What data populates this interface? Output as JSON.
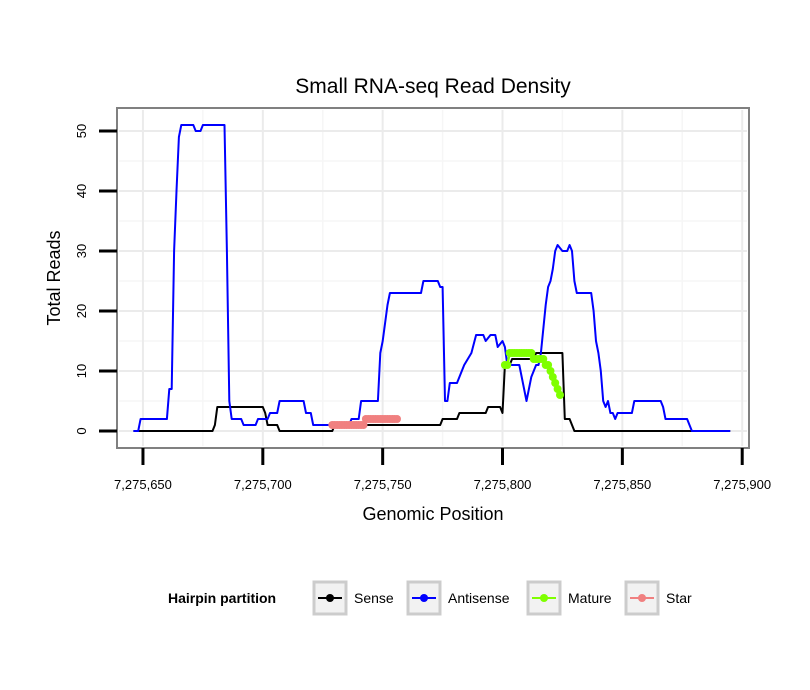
{
  "chart_data": {
    "type": "line",
    "title": "Small RNA-seq Read Density",
    "xlabel": "Genomic Position",
    "ylabel": "Total Reads",
    "xlim": [
      7275640,
      7275902
    ],
    "ylim": [
      -2.5,
      53.5
    ],
    "x_ticks": [
      7275650,
      7275700,
      7275750,
      7275800,
      7275850,
      7275900
    ],
    "x_tick_labels": [
      "7,275,650",
      "7,275,700",
      "7,275,750",
      "7,275,800",
      "7,275,850",
      "7,275,900"
    ],
    "y_ticks": [
      0,
      10,
      20,
      30,
      40,
      50
    ],
    "y_tick_labels": [
      "0",
      "10",
      "20",
      "30",
      "40",
      "50"
    ],
    "legend_title": "Hairpin partition",
    "legend_position": "bottom",
    "series": [
      {
        "name": "Sense",
        "color": "#000000",
        "style": "line",
        "points": [
          [
            7275646,
            0
          ],
          [
            7275679,
            0
          ],
          [
            7275680,
            1
          ],
          [
            7275681,
            4
          ],
          [
            7275700,
            4
          ],
          [
            7275701,
            3
          ],
          [
            7275702,
            1
          ],
          [
            7275706,
            1
          ],
          [
            7275707,
            0
          ],
          [
            7275729,
            0
          ],
          [
            7275730,
            1
          ],
          [
            7275757,
            1
          ],
          [
            7275758,
            1
          ],
          [
            7275765,
            1
          ],
          [
            7275766,
            1
          ],
          [
            7275774,
            1
          ],
          [
            7275775,
            2
          ],
          [
            7275781,
            2
          ],
          [
            7275782,
            3
          ],
          [
            7275793,
            3
          ],
          [
            7275794,
            4
          ],
          [
            7275799,
            4
          ],
          [
            7275800,
            3
          ],
          [
            7275801,
            11
          ],
          [
            7275803,
            11
          ],
          [
            7275804,
            12
          ],
          [
            7275813,
            12
          ],
          [
            7275814,
            13
          ],
          [
            7275825,
            13
          ],
          [
            7275826,
            2
          ],
          [
            7275828,
            2
          ],
          [
            7275829,
            1
          ],
          [
            7275830,
            0
          ],
          [
            7275895,
            0
          ]
        ]
      },
      {
        "name": "Antisense",
        "color": "#0000ff",
        "style": "line",
        "points": [
          [
            7275646,
            0
          ],
          [
            7275648,
            0
          ],
          [
            7275649,
            2
          ],
          [
            7275660,
            2
          ],
          [
            7275661,
            7
          ],
          [
            7275662,
            7
          ],
          [
            7275663,
            30
          ],
          [
            7275664,
            40
          ],
          [
            7275665,
            49
          ],
          [
            7275666,
            51
          ],
          [
            7275671,
            51
          ],
          [
            7275672,
            50
          ],
          [
            7275674,
            50
          ],
          [
            7275675,
            51
          ],
          [
            7275684,
            51
          ],
          [
            7275685,
            30
          ],
          [
            7275686,
            5
          ],
          [
            7275687,
            2
          ],
          [
            7275691,
            2
          ],
          [
            7275692,
            1
          ],
          [
            7275697,
            1
          ],
          [
            7275698,
            2
          ],
          [
            7275702,
            2
          ],
          [
            7275703,
            3
          ],
          [
            7275706,
            3
          ],
          [
            7275707,
            5
          ],
          [
            7275717,
            5
          ],
          [
            7275718,
            3
          ],
          [
            7275720,
            3
          ],
          [
            7275721,
            1
          ],
          [
            7275736,
            1
          ],
          [
            7275737,
            2
          ],
          [
            7275740,
            2
          ],
          [
            7275741,
            5
          ],
          [
            7275748,
            5
          ],
          [
            7275749,
            13
          ],
          [
            7275750,
            15
          ],
          [
            7275752,
            21
          ],
          [
            7275753,
            23
          ],
          [
            7275766,
            23
          ],
          [
            7275767,
            25
          ],
          [
            7275773,
            25
          ],
          [
            7275774,
            24
          ],
          [
            7275775,
            24
          ],
          [
            7275776,
            5
          ],
          [
            7275777,
            5
          ],
          [
            7275778,
            8
          ],
          [
            7275781,
            8
          ],
          [
            7275782,
            9
          ],
          [
            7275784,
            11
          ],
          [
            7275787,
            13
          ],
          [
            7275789,
            16
          ],
          [
            7275792,
            16
          ],
          [
            7275793,
            15
          ],
          [
            7275795,
            16
          ],
          [
            7275797,
            16
          ],
          [
            7275798,
            14
          ],
          [
            7275800,
            15
          ],
          [
            7275801,
            14
          ],
          [
            7275802,
            11
          ],
          [
            7275807,
            11
          ],
          [
            7275808,
            9
          ],
          [
            7275810,
            5
          ],
          [
            7275812,
            9
          ],
          [
            7275813,
            10
          ],
          [
            7275814,
            11
          ],
          [
            7275815,
            11
          ],
          [
            7275816,
            13
          ],
          [
            7275818,
            21
          ],
          [
            7275819,
            24
          ],
          [
            7275820,
            25
          ],
          [
            7275821,
            27
          ],
          [
            7275822,
            30
          ],
          [
            7275823,
            31
          ],
          [
            7275825,
            30
          ],
          [
            7275827,
            30
          ],
          [
            7275828,
            31
          ],
          [
            7275829,
            30
          ],
          [
            7275830,
            25
          ],
          [
            7275831,
            23
          ],
          [
            7275837,
            23
          ],
          [
            7275838,
            20
          ],
          [
            7275839,
            15
          ],
          [
            7275840,
            13
          ],
          [
            7275841,
            10
          ],
          [
            7275842,
            5
          ],
          [
            7275843,
            4
          ],
          [
            7275844,
            5
          ],
          [
            7275845,
            3
          ],
          [
            7275846,
            3
          ],
          [
            7275847,
            2
          ],
          [
            7275848,
            3
          ],
          [
            7275854,
            3
          ],
          [
            7275855,
            5
          ],
          [
            7275866,
            5
          ],
          [
            7275867,
            4
          ],
          [
            7275868,
            2
          ],
          [
            7275877,
            2
          ],
          [
            7275878,
            1
          ],
          [
            7275879,
            0
          ],
          [
            7275895,
            0
          ]
        ]
      },
      {
        "name": "Mature",
        "color": "#7fff00",
        "style": "points",
        "points": [
          [
            7275801,
            11
          ],
          [
            7275802,
            11
          ],
          [
            7275803,
            13
          ],
          [
            7275804,
            13
          ],
          [
            7275805,
            13
          ],
          [
            7275806,
            13
          ],
          [
            7275807,
            13
          ],
          [
            7275808,
            13
          ],
          [
            7275809,
            13
          ],
          [
            7275810,
            13
          ],
          [
            7275811,
            13
          ],
          [
            7275812,
            13
          ],
          [
            7275813,
            12
          ],
          [
            7275814,
            12
          ],
          [
            7275815,
            12
          ],
          [
            7275816,
            12
          ],
          [
            7275817,
            12
          ],
          [
            7275818,
            11
          ],
          [
            7275819,
            11
          ],
          [
            7275820,
            10
          ],
          [
            7275821,
            9
          ],
          [
            7275822,
            8
          ],
          [
            7275823,
            7
          ],
          [
            7275824,
            6
          ]
        ]
      },
      {
        "name": "Star",
        "color": "#f08080",
        "style": "points",
        "points": [
          [
            7275729,
            1
          ],
          [
            7275730,
            1
          ],
          [
            7275731,
            1
          ],
          [
            7275732,
            1
          ],
          [
            7275733,
            1
          ],
          [
            7275734,
            1
          ],
          [
            7275735,
            1
          ],
          [
            7275736,
            1
          ],
          [
            7275737,
            1
          ],
          [
            7275738,
            1
          ],
          [
            7275739,
            1
          ],
          [
            7275740,
            1
          ],
          [
            7275741,
            1
          ],
          [
            7275742,
            1
          ],
          [
            7275743,
            2
          ],
          [
            7275744,
            2
          ],
          [
            7275745,
            2
          ],
          [
            7275746,
            2
          ],
          [
            7275747,
            2
          ],
          [
            7275748,
            2
          ],
          [
            7275749,
            2
          ],
          [
            7275750,
            2
          ],
          [
            7275751,
            2
          ],
          [
            7275752,
            2
          ],
          [
            7275753,
            2
          ],
          [
            7275754,
            2
          ],
          [
            7275755,
            2
          ],
          [
            7275756,
            2
          ]
        ]
      }
    ]
  }
}
